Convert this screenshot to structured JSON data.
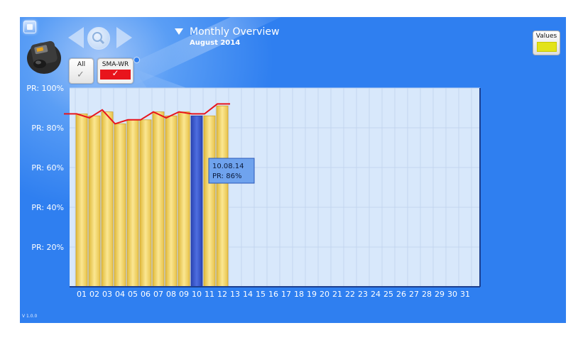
{
  "header": {
    "title": "Monthly Overview",
    "subtitle": "August 2014"
  },
  "tabs": [
    {
      "label": "All",
      "checked": true,
      "style": "plain"
    },
    {
      "label": "SMA-WR",
      "checked": true,
      "style": "red"
    }
  ],
  "values_button": {
    "label": "Values",
    "swatch_color": "#e3e31a"
  },
  "version": "V 1.0.0",
  "icons": {
    "menu": "menu-icon",
    "device": "inverter-device-icon",
    "back": "arrow-left-icon",
    "zoom": "magnifier-icon",
    "forward": "arrow-right-icon",
    "dropdown": "triangle-down-icon"
  },
  "colors": {
    "background": "#2f7ff0",
    "plot_area": "#d8e8fb",
    "bar": "#f3d35e",
    "bar_selected": "#3a55c8",
    "line": "#e8141c"
  },
  "chart_data": {
    "type": "bar",
    "categories": [
      "01",
      "02",
      "03",
      "04",
      "05",
      "06",
      "07",
      "08",
      "09",
      "10",
      "11",
      "12",
      "13",
      "14",
      "15",
      "16",
      "17",
      "18",
      "19",
      "20",
      "21",
      "22",
      "23",
      "24",
      "25",
      "26",
      "27",
      "28",
      "29",
      "30",
      "31"
    ],
    "y_tick_labels": [
      "PR: 20%",
      "PR: 40%",
      "PR: 60%",
      "PR: 80%",
      "PR: 100%"
    ],
    "y_ticks": [
      20,
      40,
      60,
      80,
      100
    ],
    "ylim": [
      0,
      100
    ],
    "values": [
      87,
      86,
      88,
      82,
      84,
      84,
      88,
      86,
      88,
      86,
      86,
      91,
      null,
      null,
      null,
      null,
      null,
      null,
      null,
      null,
      null,
      null,
      null,
      null,
      null,
      null,
      null,
      null,
      null,
      null,
      null
    ],
    "line_values": [
      87,
      87,
      85,
      89,
      82,
      84,
      84,
      88,
      85,
      88,
      87,
      87,
      92,
      92
    ],
    "selected_index": 9,
    "grid": true,
    "tooltip": {
      "date": "10.08.14",
      "text": "PR: 86%"
    }
  }
}
